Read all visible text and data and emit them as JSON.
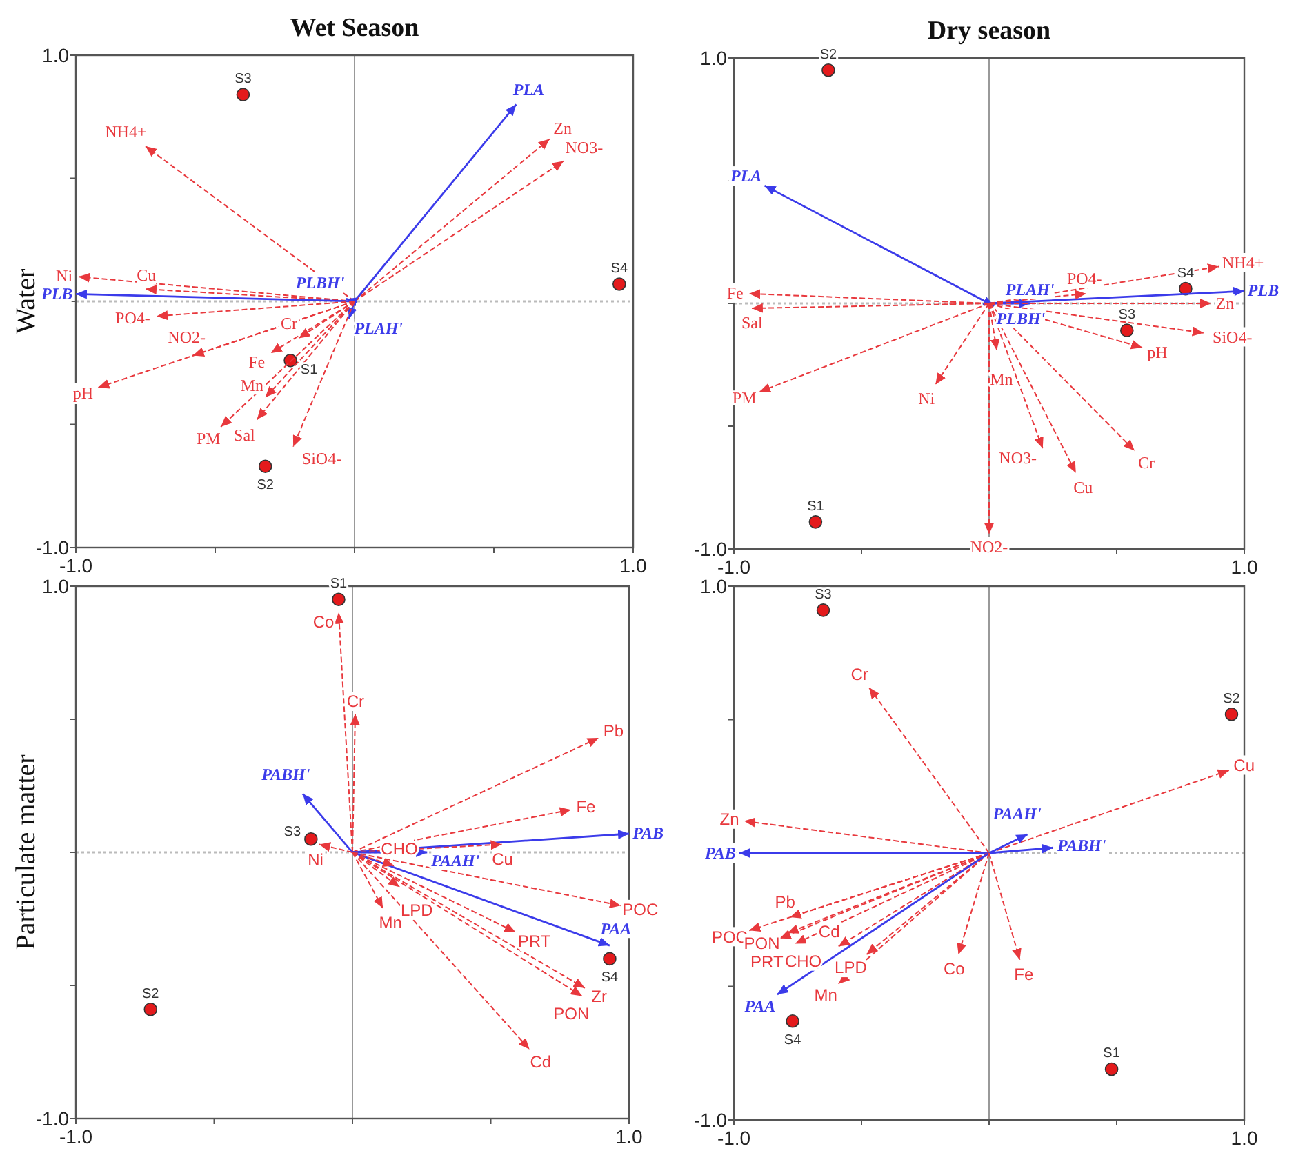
{
  "chart_data": [
    {
      "type": "scatter",
      "title": "Wet Season",
      "ylabel": "Water",
      "xlim": [
        -1,
        1
      ],
      "ylim": [
        -1,
        1
      ],
      "xticks": [
        {
          "value": -1,
          "label": "-1.0"
        },
        {
          "value": -0.5,
          "label": null
        },
        {
          "value": 0,
          "label": null
        },
        {
          "value": 0.5,
          "label": null
        },
        {
          "value": 1,
          "label": "1.0"
        }
      ],
      "yticks": [
        {
          "value": -1,
          "label": "-1.0"
        },
        {
          "value": -0.5,
          "label": null
        },
        {
          "value": 0,
          "label": null
        },
        {
          "value": 0.5,
          "label": null
        },
        {
          "value": 1,
          "label": "1.0"
        }
      ],
      "ref_lines": [
        {
          "axis": "x",
          "value": 0,
          "color": "#999999"
        },
        {
          "axis": "y",
          "value": 0,
          "color": "#bbbbbb",
          "line_style": "dotted"
        }
      ],
      "series": [
        {
          "name": "S3",
          "type": "scatter",
          "marker": "circle",
          "color": "#e41a1c",
          "x": [
            -0.4
          ],
          "values": [
            0.84
          ]
        },
        {
          "name": "S4",
          "type": "scatter",
          "marker": "circle",
          "color": "#e41a1c",
          "x": [
            0.95
          ],
          "values": [
            0.07
          ]
        },
        {
          "name": "S1",
          "type": "scatter",
          "marker": "circle",
          "color": "#e41a1c",
          "x": [
            -0.23
          ],
          "values": [
            -0.24
          ]
        },
        {
          "name": "S2",
          "type": "scatter",
          "marker": "circle",
          "color": "#e41a1c",
          "x": [
            -0.32
          ],
          "values": [
            -0.67
          ]
        },
        {
          "name": "PLA",
          "type": "line",
          "line_style": "solid",
          "color": "#3b3bea",
          "x": [
            0,
            0.58
          ],
          "values": [
            0,
            0.8
          ]
        },
        {
          "name": "Zn",
          "type": "line",
          "line_style": "dashed",
          "color": "#e8383d",
          "x": [
            0,
            0.7
          ],
          "values": [
            0,
            0.66
          ]
        },
        {
          "name": "NO3-",
          "type": "line",
          "line_style": "dashed",
          "color": "#e8383d",
          "x": [
            0,
            0.75
          ],
          "values": [
            0,
            0.57
          ]
        },
        {
          "name": "NH4+",
          "type": "line",
          "line_style": "dashed",
          "color": "#e8383d",
          "x": [
            0,
            -0.75
          ],
          "values": [
            0,
            0.63
          ]
        },
        {
          "name": "Ni",
          "type": "line",
          "line_style": "dashed",
          "color": "#e8383d",
          "x": [
            0,
            -0.99
          ],
          "values": [
            0,
            0.1
          ]
        },
        {
          "name": "Cu",
          "type": "line",
          "line_style": "dashed",
          "color": "#e8383d",
          "x": [
            0,
            -0.75
          ],
          "values": [
            0,
            0.05
          ]
        },
        {
          "name": "PLB",
          "type": "line",
          "line_style": "solid",
          "color": "#3b3bea",
          "x": [
            0,
            -1
          ],
          "values": [
            0,
            0.03
          ]
        },
        {
          "name": "PLBH'",
          "type": "line",
          "line_style": "solid",
          "color": "#3b3bea",
          "x": [
            0,
            -0.03
          ],
          "values": [
            0,
            0.01
          ]
        },
        {
          "name": "PLAH'",
          "type": "line",
          "line_style": "solid",
          "color": "#3b3bea",
          "x": [
            0,
            -0.02
          ],
          "values": [
            0,
            -0.07
          ]
        },
        {
          "name": "PO4-",
          "type": "line",
          "line_style": "dashed",
          "color": "#e8383d",
          "x": [
            0,
            -0.71
          ],
          "values": [
            0,
            -0.06
          ]
        },
        {
          "name": "NO2-",
          "type": "line",
          "line_style": "dashed",
          "color": "#e8383d",
          "x": [
            0,
            -0.58
          ],
          "values": [
            0,
            -0.22
          ]
        },
        {
          "name": "pH",
          "type": "line",
          "line_style": "dashed",
          "color": "#e8383d",
          "x": [
            0,
            -0.92
          ],
          "values": [
            0,
            -0.35
          ]
        },
        {
          "name": "Cr",
          "type": "line",
          "line_style": "dashed",
          "color": "#e8383d",
          "x": [
            0,
            -0.2
          ],
          "values": [
            0,
            -0.15
          ]
        },
        {
          "name": "Fe",
          "type": "line",
          "line_style": "dashed",
          "color": "#e8383d",
          "x": [
            0,
            -0.3
          ],
          "values": [
            0,
            -0.21
          ]
        },
        {
          "name": "Mn",
          "type": "line",
          "line_style": "dashed",
          "color": "#e8383d",
          "x": [
            0,
            -0.32
          ],
          "values": [
            0,
            -0.39
          ]
        },
        {
          "name": "PM",
          "type": "line",
          "line_style": "dashed",
          "color": "#e8383d",
          "x": [
            0,
            -0.48
          ],
          "values": [
            0,
            -0.51
          ]
        },
        {
          "name": "Sal",
          "type": "line",
          "line_style": "dashed",
          "color": "#e8383d",
          "x": [
            0,
            -0.35
          ],
          "values": [
            0,
            -0.48
          ]
        },
        {
          "name": "SiO4-",
          "type": "line",
          "line_style": "dashed",
          "color": "#e8383d",
          "x": [
            0,
            -0.22
          ],
          "values": [
            0,
            -0.59
          ]
        }
      ]
    },
    {
      "type": "scatter",
      "title": "Dry season",
      "xlim": [
        -1,
        1
      ],
      "ylim": [
        -1,
        1
      ],
      "xticks": [
        {
          "value": -1,
          "label": "-1.0"
        },
        {
          "value": -0.5,
          "label": null
        },
        {
          "value": 0,
          "label": null
        },
        {
          "value": 0.5,
          "label": null
        },
        {
          "value": 1,
          "label": "1.0"
        }
      ],
      "yticks": [
        {
          "value": -1,
          "label": "-1.0"
        },
        {
          "value": -0.5,
          "label": null
        },
        {
          "value": 0,
          "label": null
        },
        {
          "value": 0.5,
          "label": null
        },
        {
          "value": 1,
          "label": "1.0"
        }
      ],
      "ref_lines": [
        {
          "axis": "x",
          "value": 0,
          "color": "#999999"
        },
        {
          "axis": "y",
          "value": 0,
          "color": "#bbbbbb",
          "line_style": "dotted"
        }
      ],
      "series": [
        {
          "name": "S2",
          "type": "scatter",
          "marker": "circle",
          "color": "#e41a1c",
          "x": [
            -0.63
          ],
          "values": [
            0.95
          ]
        },
        {
          "name": "S1",
          "type": "scatter",
          "marker": "circle",
          "color": "#e41a1c",
          "x": [
            -0.68
          ],
          "values": [
            -0.89
          ]
        },
        {
          "name": "S4",
          "type": "scatter",
          "marker": "circle",
          "color": "#e41a1c",
          "x": [
            0.77
          ],
          "values": [
            0.06
          ]
        },
        {
          "name": "S3",
          "type": "scatter",
          "marker": "circle",
          "color": "#e41a1c",
          "x": [
            0.54
          ],
          "values": [
            -0.11
          ]
        },
        {
          "name": "PLA",
          "type": "line",
          "line_style": "solid",
          "color": "#3b3bea",
          "x": [
            0,
            -0.88
          ],
          "values": [
            0,
            0.48
          ]
        },
        {
          "name": "PLB",
          "type": "line",
          "line_style": "solid",
          "color": "#3b3bea",
          "x": [
            0,
            1
          ],
          "values": [
            0,
            0.05
          ]
        },
        {
          "name": "PLAH'",
          "type": "line",
          "line_style": "solid",
          "color": "#3b3bea",
          "x": [
            0,
            0.16
          ],
          "values": [
            0,
            0
          ]
        },
        {
          "name": "PLBH'",
          "type": "line",
          "line_style": "solid",
          "color": "#3b3bea",
          "x": [
            0,
            0.02
          ],
          "values": [
            0,
            -0.01
          ]
        },
        {
          "name": "NH4+",
          "type": "line",
          "line_style": "dashed",
          "color": "#e8383d",
          "x": [
            0,
            0.9
          ],
          "values": [
            0,
            0.15
          ]
        },
        {
          "name": "PO4-",
          "type": "line",
          "line_style": "dashed",
          "color": "#e8383d",
          "x": [
            0,
            0.38
          ],
          "values": [
            0,
            0.04
          ]
        },
        {
          "name": "Zn",
          "type": "line",
          "line_style": "dashed",
          "color": "#e8383d",
          "x": [
            0,
            0.87
          ],
          "values": [
            0,
            0
          ]
        },
        {
          "name": "SiO4-",
          "type": "line",
          "line_style": "dashed",
          "color": "#e8383d",
          "x": [
            0,
            0.84
          ],
          "values": [
            0,
            -0.12
          ]
        },
        {
          "name": "pH",
          "type": "line",
          "line_style": "dashed",
          "color": "#e8383d",
          "x": [
            0,
            0.6
          ],
          "values": [
            0,
            -0.18
          ]
        },
        {
          "name": "Fe",
          "type": "line",
          "line_style": "dashed",
          "color": "#e8383d",
          "x": [
            0,
            -0.94
          ],
          "values": [
            0,
            0.04
          ]
        },
        {
          "name": "Sal",
          "type": "line",
          "line_style": "dashed",
          "color": "#e8383d",
          "x": [
            0,
            -0.93
          ],
          "values": [
            0,
            -0.02
          ]
        },
        {
          "name": "PM",
          "type": "line",
          "line_style": "dashed",
          "color": "#e8383d",
          "x": [
            0,
            -0.9
          ],
          "values": [
            0,
            -0.36
          ]
        },
        {
          "name": "Ni",
          "type": "line",
          "line_style": "dashed",
          "color": "#e8383d",
          "x": [
            0,
            -0.21
          ],
          "values": [
            0,
            -0.33
          ]
        },
        {
          "name": "Mn",
          "type": "line",
          "line_style": "dashed",
          "color": "#e8383d",
          "x": [
            0,
            0.03
          ],
          "values": [
            0,
            -0.19
          ]
        },
        {
          "name": "NO3-",
          "type": "line",
          "line_style": "dashed",
          "color": "#e8383d",
          "x": [
            0,
            0.21
          ],
          "values": [
            0,
            -0.59
          ]
        },
        {
          "name": "Cu",
          "type": "line",
          "line_style": "dashed",
          "color": "#e8383d",
          "x": [
            0,
            0.34
          ],
          "values": [
            0,
            -0.69
          ]
        },
        {
          "name": "Cr",
          "type": "line",
          "line_style": "dashed",
          "color": "#e8383d",
          "x": [
            0,
            0.57
          ],
          "values": [
            0,
            -0.6
          ]
        },
        {
          "name": "NO2-",
          "type": "line",
          "line_style": "dashed",
          "color": "#e8383d",
          "x": [
            0,
            0
          ],
          "values": [
            0,
            -0.94
          ]
        }
      ]
    },
    {
      "type": "scatter",
      "ylabel": "Particulate matter",
      "xlim": [
        -1,
        1
      ],
      "ylim": [
        -1,
        1
      ],
      "xticks": [
        {
          "value": -1,
          "label": "-1.0"
        },
        {
          "value": -0.5,
          "label": null
        },
        {
          "value": 0,
          "label": null
        },
        {
          "value": 0.5,
          "label": null
        },
        {
          "value": 1,
          "label": "1.0"
        }
      ],
      "yticks": [
        {
          "value": -1,
          "label": "-1.0"
        },
        {
          "value": -0.5,
          "label": null
        },
        {
          "value": 0,
          "label": null
        },
        {
          "value": 0.5,
          "label": null
        },
        {
          "value": 1,
          "label": "1.0"
        }
      ],
      "ref_lines": [
        {
          "axis": "x",
          "value": 0,
          "color": "#999999"
        },
        {
          "axis": "y",
          "value": 0,
          "color": "#bbbbbb",
          "line_style": "dotted"
        }
      ],
      "series": [
        {
          "name": "S1",
          "type": "scatter",
          "marker": "circle",
          "color": "#e41a1c",
          "x": [
            -0.05
          ],
          "values": [
            0.95
          ]
        },
        {
          "name": "S3",
          "type": "scatter",
          "marker": "circle",
          "color": "#e41a1c",
          "x": [
            -0.15
          ],
          "values": [
            0.05
          ]
        },
        {
          "name": "S2",
          "type": "scatter",
          "marker": "circle",
          "color": "#e41a1c",
          "x": [
            -0.73
          ],
          "values": [
            -0.59
          ]
        },
        {
          "name": "S4",
          "type": "scatter",
          "marker": "circle",
          "color": "#e41a1c",
          "x": [
            0.93
          ],
          "values": [
            -0.4
          ]
        },
        {
          "name": "Co",
          "type": "line",
          "line_style": "dashed",
          "color": "#e8383d",
          "x": [
            0,
            -0.05
          ],
          "values": [
            0,
            0.9
          ]
        },
        {
          "name": "Cr",
          "type": "line",
          "line_style": "dashed",
          "color": "#e8383d",
          "x": [
            0,
            0.01
          ],
          "values": [
            0,
            0.52
          ]
        },
        {
          "name": "Pb",
          "type": "line",
          "line_style": "dashed",
          "color": "#e8383d",
          "x": [
            0,
            0.89
          ],
          "values": [
            0,
            0.43
          ]
        },
        {
          "name": "Fe",
          "type": "line",
          "line_style": "dashed",
          "color": "#e8383d",
          "x": [
            0,
            0.79
          ],
          "values": [
            0,
            0.16
          ]
        },
        {
          "name": "PAB",
          "type": "line",
          "line_style": "solid",
          "color": "#3b3bea",
          "x": [
            0,
            1
          ],
          "values": [
            0,
            0.07
          ]
        },
        {
          "name": "Cu",
          "type": "line",
          "line_style": "dashed",
          "color": "#e8383d",
          "x": [
            0,
            0.54
          ],
          "values": [
            0,
            0.03
          ]
        },
        {
          "name": "PAAH'",
          "type": "line",
          "line_style": "solid",
          "color": "#3b3bea",
          "x": [
            0,
            0.27
          ],
          "values": [
            0,
            0
          ]
        },
        {
          "name": "PABH'",
          "type": "line",
          "line_style": "solid",
          "color": "#3b3bea",
          "x": [
            0,
            -0.18
          ],
          "values": [
            0,
            0.22
          ]
        },
        {
          "name": "Ni",
          "type": "line",
          "line_style": "dashed",
          "color": "#e8383d",
          "x": [
            0,
            -0.12
          ],
          "values": [
            0,
            0.03
          ]
        },
        {
          "name": "POC",
          "type": "line",
          "line_style": "dashed",
          "color": "#e8383d",
          "x": [
            0,
            0.97
          ],
          "values": [
            0,
            -0.2
          ]
        },
        {
          "name": "PAA",
          "type": "line",
          "line_style": "solid",
          "color": "#3b3bea",
          "x": [
            0,
            0.93
          ],
          "values": [
            0,
            -0.35
          ]
        },
        {
          "name": "PRT",
          "type": "line",
          "line_style": "dashed",
          "color": "#e8383d",
          "x": [
            0,
            0.59
          ],
          "values": [
            0,
            -0.3
          ]
        },
        {
          "name": "Zr",
          "type": "line",
          "line_style": "dashed",
          "color": "#e8383d",
          "x": [
            0,
            0.84
          ],
          "values": [
            0,
            -0.51
          ]
        },
        {
          "name": "PON",
          "type": "line",
          "line_style": "dashed",
          "color": "#e8383d",
          "x": [
            0,
            0.83
          ],
          "values": [
            0,
            -0.54
          ]
        },
        {
          "name": "Cd",
          "type": "line",
          "line_style": "dashed",
          "color": "#e8383d",
          "x": [
            0,
            0.64
          ],
          "values": [
            0,
            -0.74
          ]
        },
        {
          "name": "Mn",
          "type": "line",
          "line_style": "dashed",
          "color": "#e8383d",
          "x": [
            0,
            0.11
          ],
          "values": [
            0,
            -0.21
          ]
        },
        {
          "name": "CHO",
          "type": "line",
          "line_style": "dashed",
          "color": "#e8383d",
          "x": [
            0,
            0.15
          ],
          "values": [
            0,
            -0.05
          ]
        },
        {
          "name": "LPD",
          "type": "line",
          "line_style": "dashed",
          "color": "#e8383d",
          "x": [
            0,
            0.17
          ],
          "values": [
            0,
            -0.13
          ]
        }
      ]
    },
    {
      "type": "scatter",
      "xlim": [
        -1,
        1
      ],
      "ylim": [
        -1,
        1
      ],
      "xticks": [
        {
          "value": -1,
          "label": "-1.0"
        },
        {
          "value": -0.5,
          "label": null
        },
        {
          "value": 0,
          "label": null
        },
        {
          "value": 0.5,
          "label": null
        },
        {
          "value": 1,
          "label": "1.0"
        }
      ],
      "yticks": [
        {
          "value": -1,
          "label": "-1.0"
        },
        {
          "value": -0.5,
          "label": null
        },
        {
          "value": 0,
          "label": null
        },
        {
          "value": 0.5,
          "label": null
        },
        {
          "value": 1,
          "label": "1.0"
        }
      ],
      "ref_lines": [
        {
          "axis": "x",
          "value": 0,
          "color": "#999999"
        },
        {
          "axis": "y",
          "value": 0,
          "color": "#bbbbbb",
          "line_style": "dotted"
        }
      ],
      "series": [
        {
          "name": "S3",
          "type": "scatter",
          "marker": "circle",
          "color": "#e41a1c",
          "x": [
            -0.65
          ],
          "values": [
            0.91
          ]
        },
        {
          "name": "S2",
          "type": "scatter",
          "marker": "circle",
          "color": "#e41a1c",
          "x": [
            0.95
          ],
          "values": [
            0.52
          ]
        },
        {
          "name": "S4",
          "type": "scatter",
          "marker": "circle",
          "color": "#e41a1c",
          "x": [
            -0.77
          ],
          "values": [
            -0.63
          ]
        },
        {
          "name": "S1",
          "type": "scatter",
          "marker": "circle",
          "color": "#e41a1c",
          "x": [
            0.48
          ],
          "values": [
            -0.81
          ]
        },
        {
          "name": "Cr",
          "type": "line",
          "line_style": "dashed",
          "color": "#e8383d",
          "x": [
            0,
            -0.47
          ],
          "values": [
            0,
            0.62
          ]
        },
        {
          "name": "Cu",
          "type": "line",
          "line_style": "dashed",
          "color": "#e8383d",
          "x": [
            0,
            0.94
          ],
          "values": [
            0,
            0.31
          ]
        },
        {
          "name": "Zn",
          "type": "line",
          "line_style": "dashed",
          "color": "#e8383d",
          "x": [
            0,
            -0.96
          ],
          "values": [
            0,
            0.12
          ]
        },
        {
          "name": "PAB",
          "type": "line",
          "line_style": "solid",
          "color": "#3b3bea",
          "x": [
            0,
            -0.98
          ],
          "values": [
            0,
            0
          ]
        },
        {
          "name": "PAAH'",
          "type": "line",
          "line_style": "solid",
          "color": "#3b3bea",
          "x": [
            0,
            0.15
          ],
          "values": [
            0,
            0.07
          ]
        },
        {
          "name": "PABH'",
          "type": "line",
          "line_style": "solid",
          "color": "#3b3bea",
          "x": [
            0,
            0.25
          ],
          "values": [
            0,
            0.02
          ]
        },
        {
          "name": "Pb",
          "type": "line",
          "line_style": "dashed",
          "color": "#e8383d",
          "x": [
            0,
            -0.78
          ],
          "values": [
            0,
            -0.24
          ]
        },
        {
          "name": "POC",
          "type": "line",
          "line_style": "dashed",
          "color": "#e8383d",
          "x": [
            0,
            -0.94
          ],
          "values": [
            0,
            -0.29
          ]
        },
        {
          "name": "PON",
          "type": "line",
          "line_style": "dashed",
          "color": "#e8383d",
          "x": [
            0,
            -0.79
          ],
          "values": [
            0,
            -0.3
          ]
        },
        {
          "name": "PRT",
          "type": "line",
          "line_style": "dashed",
          "color": "#e8383d",
          "x": [
            0,
            -0.82
          ],
          "values": [
            0,
            -0.32
          ]
        },
        {
          "name": "CHO",
          "type": "line",
          "line_style": "dashed",
          "color": "#e8383d",
          "x": [
            0,
            -0.76
          ],
          "values": [
            0,
            -0.34
          ]
        },
        {
          "name": "Cd",
          "type": "line",
          "line_style": "dashed",
          "color": "#e8383d",
          "x": [
            0,
            -0.59
          ],
          "values": [
            0,
            -0.35
          ]
        },
        {
          "name": "LPD",
          "type": "line",
          "line_style": "dashed",
          "color": "#e8383d",
          "x": [
            0,
            -0.48
          ],
          "values": [
            0,
            -0.38
          ]
        },
        {
          "name": "Mn",
          "type": "line",
          "line_style": "dashed",
          "color": "#e8383d",
          "x": [
            0,
            -0.59
          ],
          "values": [
            0,
            -0.49
          ]
        },
        {
          "name": "PAA",
          "type": "line",
          "line_style": "solid",
          "color": "#3b3bea",
          "x": [
            0,
            -0.83
          ],
          "values": [
            0,
            -0.53
          ]
        },
        {
          "name": "Co",
          "type": "line",
          "line_style": "dashed",
          "color": "#e8383d",
          "x": [
            0,
            -0.12
          ],
          "values": [
            0,
            -0.38
          ]
        },
        {
          "name": "Fe",
          "type": "line",
          "line_style": "dashed",
          "color": "#e8383d",
          "x": [
            0,
            0.12
          ],
          "values": [
            0,
            -0.4
          ]
        }
      ]
    }
  ]
}
